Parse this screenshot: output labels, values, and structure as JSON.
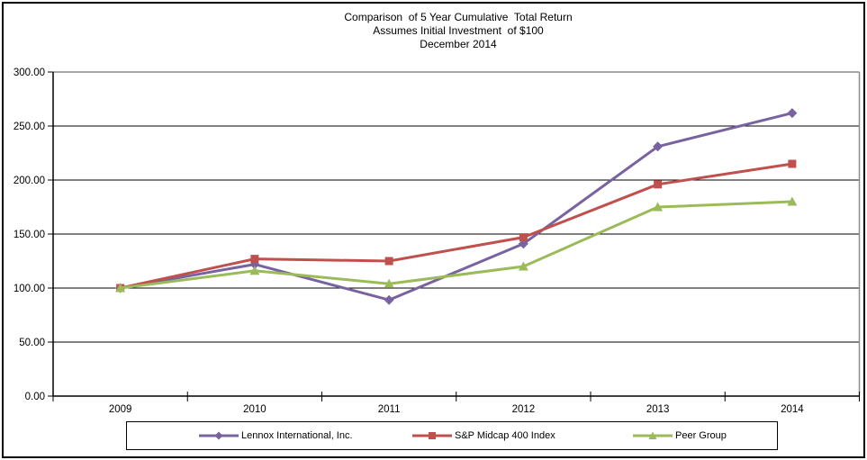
{
  "title": {
    "line1": "Comparison  of 5 Year Cumulative  Total Return",
    "line2": "Assumes Initial Investment  of $100",
    "line3": "December 2014"
  },
  "chart_data": {
    "type": "line",
    "categories": [
      "2009",
      "2010",
      "2011",
      "2012",
      "2013",
      "2014"
    ],
    "series": [
      {
        "name": "Lennox International, Inc.",
        "color": "#7863A0",
        "marker": "diamond",
        "values": [
          100,
          122,
          89,
          141,
          231,
          262
        ]
      },
      {
        "name": "S&P Midcap 400 Index",
        "color": "#C0504D",
        "marker": "square",
        "values": [
          100,
          127,
          125,
          147,
          196,
          215
        ]
      },
      {
        "name": "Peer Group",
        "color": "#9BBB59",
        "marker": "triangle",
        "values": [
          100,
          116,
          104,
          120,
          175,
          180
        ]
      }
    ],
    "ylim": [
      0,
      300
    ],
    "ytick_step": 50,
    "ytick_labels": [
      "0.00",
      "50.00",
      "100.00",
      "150.00",
      "200.00",
      "250.00",
      "300.00"
    ],
    "xlabel": "",
    "ylabel": "",
    "grid": "horizontal",
    "legend_position": "bottom",
    "colors": {
      "axis": "#000000",
      "gridline": "#000000",
      "plot_border": "#8C8C8C",
      "text": "#000000",
      "background": "#FFFFFF"
    }
  }
}
